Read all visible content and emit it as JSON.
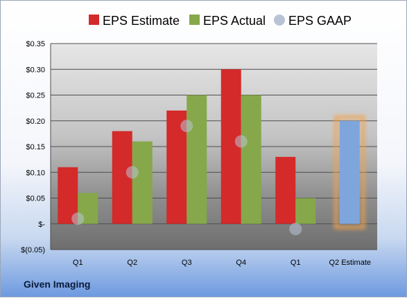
{
  "footer": {
    "company": "Given Imaging"
  },
  "colors": {
    "estimate": "#d42a2a",
    "actual": "#86a84a",
    "gaap": "#b8c4d6",
    "future_estimate": "#7ea6dd",
    "highlight": "#f2a24a"
  },
  "chart_data": {
    "type": "bar",
    "categories": [
      "Q1",
      "Q2",
      "Q3",
      "Q4",
      "Q1",
      "Q2 Estimate"
    ],
    "series": [
      {
        "name": "EPS Estimate",
        "values": [
          0.11,
          0.18,
          0.22,
          0.3,
          0.13,
          0.2
        ]
      },
      {
        "name": "EPS Actual",
        "values": [
          0.06,
          0.16,
          0.25,
          0.25,
          0.05,
          null
        ]
      },
      {
        "name": "EPS GAAP",
        "type": "scatter",
        "values": [
          0.01,
          0.1,
          0.19,
          0.16,
          -0.01,
          null
        ]
      }
    ],
    "yticks": [
      "$0.35",
      "$0.30",
      "$0.25",
      "$0.20",
      "$0.15",
      "$0.10",
      "$0.05",
      "$-",
      "$(0.05)"
    ],
    "ylim": [
      -0.05,
      0.35
    ],
    "grid": true,
    "legend_position": "top"
  }
}
